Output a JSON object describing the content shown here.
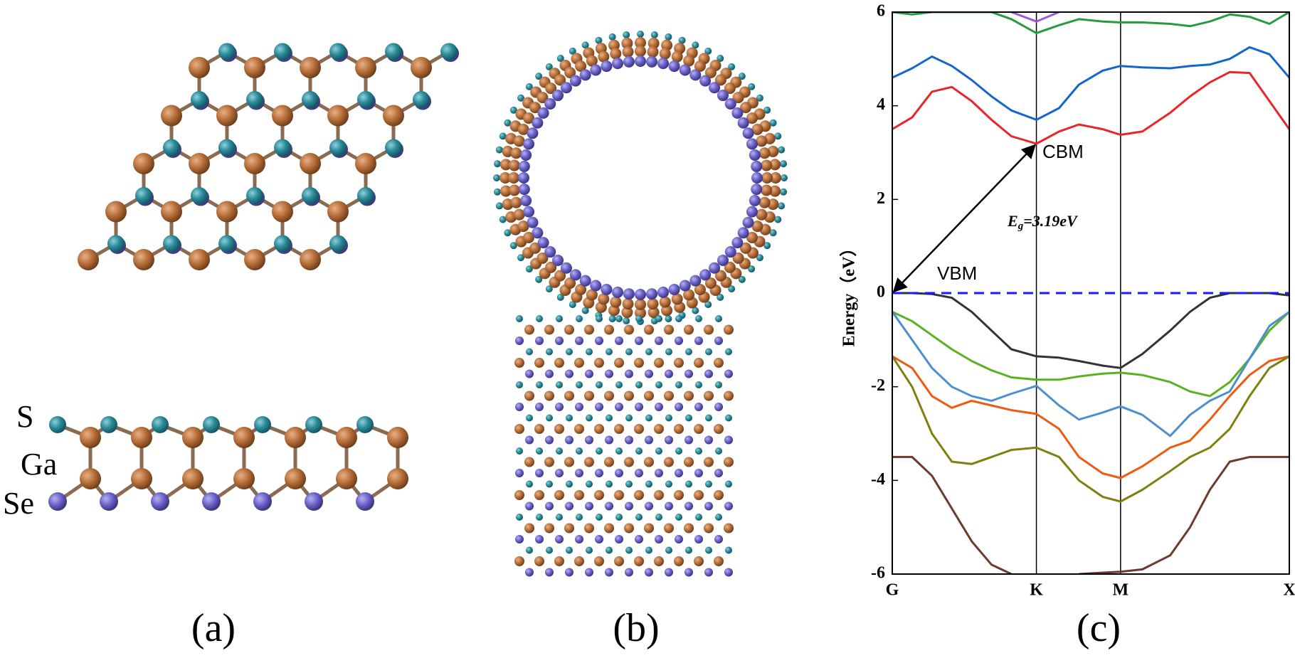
{
  "panels": {
    "a_label": "(a)",
    "b_label": "(b)",
    "c_label": "(c)",
    "atom_s": "S",
    "atom_ga": "Ga",
    "atom_se": "Se"
  },
  "chart_data": {
    "type": "line",
    "y_label": "Energy（eV）",
    "xlim": [
      0,
      1
    ],
    "ylim": [
      -6,
      6
    ],
    "xticks": [
      {
        "value": 0,
        "label": "G"
      },
      {
        "value": 0.363,
        "label": "K"
      },
      {
        "value": 0.575,
        "label": "M"
      },
      {
        "value": 1,
        "label": "X"
      }
    ],
    "yticks": [
      -6,
      -4,
      -2,
      0,
      2,
      4,
      6
    ],
    "grid": "x",
    "x": [
      0,
      0.05,
      0.1,
      0.15,
      0.2,
      0.25,
      0.3,
      0.363,
      0.42,
      0.47,
      0.53,
      0.575,
      0.63,
      0.7,
      0.75,
      0.8,
      0.85,
      0.9,
      0.95,
      1
    ],
    "series": [
      {
        "color": "#2a9a40",
        "values": [
          6,
          5.95,
          6,
          6,
          6,
          6,
          5.85,
          5.55,
          5.72,
          5.85,
          5.8,
          5.78,
          5.78,
          5.75,
          5.7,
          5.8,
          5.95,
          5.9,
          5.75,
          6
        ]
      },
      {
        "color": "#a05ad8",
        "values": [
          null,
          null,
          null,
          null,
          null,
          null,
          6,
          5.8,
          6,
          null,
          null,
          null,
          null,
          null,
          null,
          null,
          null,
          null,
          null,
          null
        ]
      },
      {
        "color": "#1565d0",
        "values": [
          4.6,
          4.8,
          5.05,
          4.85,
          4.55,
          4.2,
          3.9,
          3.7,
          3.95,
          4.45,
          4.75,
          4.85,
          4.82,
          4.8,
          4.85,
          4.88,
          5.0,
          5.25,
          5.1,
          4.6
        ]
      },
      {
        "color": "#e8262a",
        "values": [
          3.5,
          3.75,
          4.3,
          4.4,
          4.1,
          3.7,
          3.35,
          3.19,
          3.45,
          3.6,
          3.5,
          3.38,
          3.45,
          3.85,
          4.2,
          4.5,
          4.72,
          4.7,
          4.1,
          3.5
        ]
      },
      {
        "color": "#333333",
        "values": [
          0,
          0,
          -0.02,
          -0.1,
          -0.4,
          -0.8,
          -1.2,
          -1.35,
          -1.38,
          -1.45,
          -1.55,
          -1.6,
          -1.3,
          -0.8,
          -0.4,
          -0.1,
          0,
          0,
          0,
          -0.05
        ]
      },
      {
        "color": "#5ab21e",
        "values": [
          -0.4,
          -0.6,
          -0.9,
          -1.2,
          -1.45,
          -1.65,
          -1.8,
          -1.85,
          -1.85,
          -1.78,
          -1.72,
          -1.7,
          -1.75,
          -1.9,
          -2.1,
          -2.2,
          -1.9,
          -1.4,
          -0.8,
          -0.4
        ]
      },
      {
        "color": "#4d90d0",
        "values": [
          -0.4,
          -1.0,
          -1.6,
          -2.0,
          -2.2,
          -2.3,
          -2.15,
          -1.98,
          -2.4,
          -2.7,
          -2.55,
          -2.42,
          -2.6,
          -3.05,
          -2.6,
          -2.3,
          -2.1,
          -1.4,
          -0.7,
          -0.4
        ]
      },
      {
        "color": "#f05a10",
        "values": [
          -1.35,
          -1.6,
          -2.2,
          -2.45,
          -2.3,
          -2.4,
          -2.5,
          -2.58,
          -2.9,
          -3.5,
          -3.85,
          -3.95,
          -3.7,
          -3.3,
          -3.15,
          -2.7,
          -2.2,
          -1.75,
          -1.45,
          -1.35
        ]
      },
      {
        "color": "#808010",
        "values": [
          -1.35,
          -2.0,
          -3.0,
          -3.6,
          -3.65,
          -3.5,
          -3.35,
          -3.3,
          -3.5,
          -4.0,
          -4.35,
          -4.45,
          -4.2,
          -3.8,
          -3.5,
          -3.3,
          -2.9,
          -2.2,
          -1.6,
          -1.35
        ]
      },
      {
        "color": "#6e3a30",
        "values": [
          -3.5,
          -3.5,
          -3.9,
          -4.6,
          -5.3,
          -5.8,
          -6,
          null,
          null,
          -6,
          -5.97,
          -5.95,
          -5.9,
          -5.6,
          -5.0,
          -4.2,
          -3.6,
          -3.5,
          -3.5,
          -3.5
        ]
      }
    ],
    "fermi_level": 0,
    "fermi_color": "#1a1aff",
    "arrow": {
      "x": [
        0,
        0.363
      ],
      "y": [
        0,
        3.19
      ]
    },
    "annotations": {
      "cbm": "CBM",
      "vbm": "VBM",
      "gap_symbol": "E",
      "gap_sub": "g",
      "gap_value": "=3.19eV"
    }
  }
}
